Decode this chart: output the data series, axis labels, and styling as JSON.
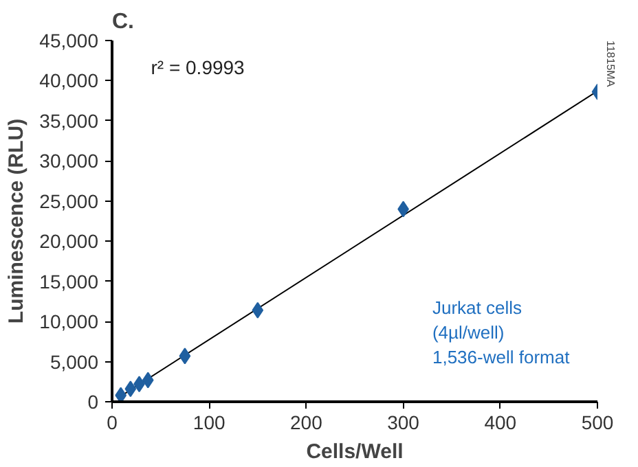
{
  "chart_data": {
    "type": "scatter",
    "title": "C.",
    "xlabel": "Cells/Well",
    "ylabel": "Luminescence (RLU)",
    "x": [
      9,
      19,
      28,
      37,
      75,
      150,
      300,
      500
    ],
    "series": [
      {
        "color": "#1f5fa0",
        "marker": "diamond",
        "values": [
          800,
          1600,
          2200,
          2700,
          5700,
          11400,
          24000,
          38600
        ]
      },
      {
        "type": "line",
        "color": "#000000",
        "x": [
          9,
          500
        ],
        "values": [
          700,
          38700
        ]
      }
    ],
    "xlim": [
      0,
      500
    ],
    "ylim": [
      0,
      45000
    ],
    "xticks": [
      0,
      100,
      200,
      300,
      400,
      500
    ],
    "yticks": [
      {
        "value": 0,
        "label": "0"
      },
      {
        "value": 5000,
        "label": "5,000"
      },
      {
        "value": 10000,
        "label": "10,000"
      },
      {
        "value": 15000,
        "label": "15,000"
      },
      {
        "value": 20000,
        "label": "20,000"
      },
      {
        "value": 25000,
        "label": "25,000"
      },
      {
        "value": 30000,
        "label": "30,000"
      },
      {
        "value": 35000,
        "label": "35,000"
      },
      {
        "value": 40000,
        "label": "40,000"
      },
      {
        "value": 45000,
        "label": "45,000"
      }
    ],
    "grid": false,
    "annotations": [
      "r² = 0.9993",
      "Jurkat cells\n(4µl/well)\n1,536-well format",
      "11815MA"
    ]
  }
}
